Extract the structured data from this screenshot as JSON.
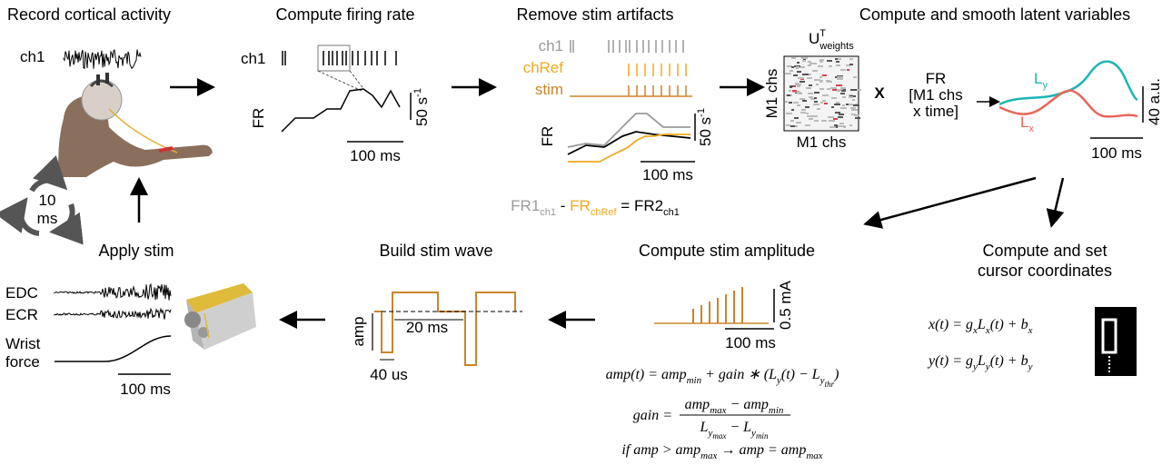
{
  "record": {
    "title": "Record cortical activity",
    "channel": "ch1",
    "loop": [
      "10",
      "ms"
    ]
  },
  "firing_rate": {
    "title": "Compute firing rate",
    "channel": "ch1",
    "fr": "FR",
    "scale_y": [
      "50 s",
      "-1"
    ],
    "scale_x": "100 ms"
  },
  "artifacts": {
    "title": "Remove stim artifacts",
    "channels": [
      "ch1",
      "chRef",
      "stim"
    ],
    "fr": "FR",
    "scale_y": [
      "50 s",
      "-1"
    ],
    "scale_x": "100 ms",
    "equation": [
      "FR1",
      "ch1",
      " - ",
      "FR",
      "chRef",
      " = FR2",
      "ch1"
    ]
  },
  "latent": {
    "title": "Compute and smooth latent variables",
    "weights": [
      "U",
      "T",
      "weights"
    ],
    "axis_y": "M1 chs",
    "axis_x": "M1 chs",
    "times": "X",
    "fr": [
      "FR",
      "[M1 chs",
      "x time]"
    ],
    "ly": [
      "L",
      "y"
    ],
    "lx": [
      "L",
      "x"
    ],
    "scale_y": "40 a.u.",
    "scale_x": "100 ms"
  },
  "apply": {
    "title": "Apply stim",
    "signals": [
      "EDC",
      "ECR",
      "Wrist",
      "force"
    ],
    "scale_x": "100 ms"
  },
  "wave": {
    "title": "Build stim wave",
    "amp": "amp",
    "width": "20 ms",
    "pulse": "40 us"
  },
  "amplitude": {
    "title": "Compute stim amplitude",
    "scale_y": "0.5 mA",
    "scale_x": "100 ms",
    "eq1": [
      "amp(t) = amp",
      "min",
      " + gain ∗ (L",
      "y",
      "(t) − L",
      "y",
      "thr",
      ")"
    ],
    "eq2": [
      "gain =",
      "amp",
      "max",
      " − amp",
      "min",
      "L",
      "y",
      "max",
      " − L",
      "y",
      "min"
    ],
    "eq3": [
      "if amp > amp",
      "max",
      " → amp = amp",
      "max"
    ]
  },
  "cursor": {
    "title": [
      "Compute and set",
      "cursor coordinates"
    ],
    "eq_x": [
      "x(t) = g",
      "x",
      "L",
      "x",
      "(t) + b",
      "x"
    ],
    "eq_y": [
      "y(t) = g",
      "y",
      "L",
      "y",
      "(t) + b",
      "y"
    ]
  }
}
